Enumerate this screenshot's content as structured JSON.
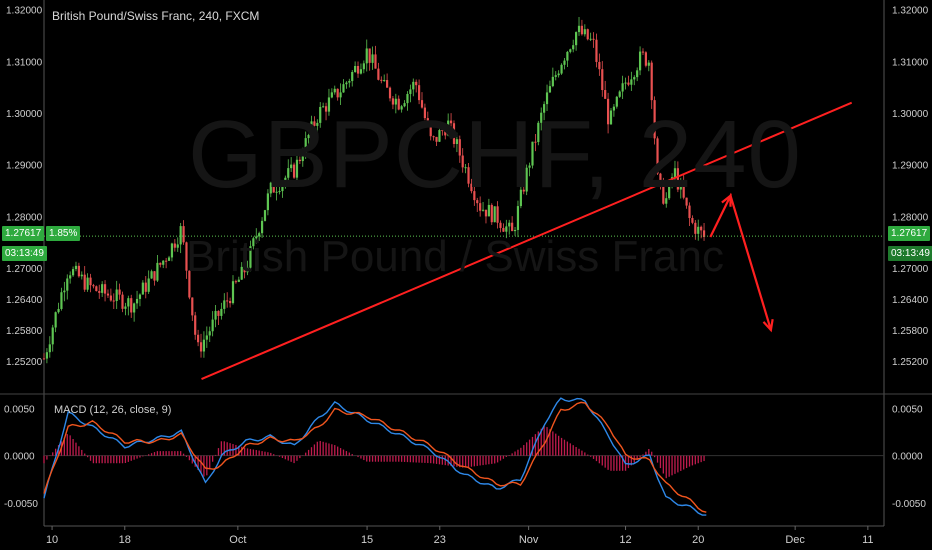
{
  "header": {
    "title": "British Pound/Swiss Franc, 240, FXCM"
  },
  "watermark": {
    "symbol": "GBPCHF, 240",
    "name": "British Pound / Swiss Franc"
  },
  "price_tags": {
    "left_price": "1.27617",
    "left_change": "1.85%",
    "right_price": "1.27617",
    "right_timer": "03:13:49",
    "left_timer": "03:13:49"
  },
  "macd_panel": {
    "label": "MACD (12, 26, close, 9)"
  },
  "colors": {
    "up": "#5ec552",
    "down": "#e85050",
    "trendline": "#ff2020",
    "macd": "#2e88e8",
    "signal": "#f0551e",
    "hist": "#c01c4e"
  },
  "chart_data": [
    {
      "type": "candlestick",
      "title": "British Pound/Swiss Franc, 240, FXCM",
      "y_ticks": [
        "1.32000",
        "1.31000",
        "1.30000",
        "1.29000",
        "1.28000",
        "1.27000",
        "1.26400",
        "1.25800",
        "1.25200"
      ],
      "x_ticks": [
        "10",
        "18",
        "Oct",
        "15",
        "23",
        "Nov",
        "12",
        "20",
        "Dec",
        "11"
      ],
      "ylim": [
        1.246,
        1.3215
      ],
      "last_price": 1.27617,
      "change_pct": "1.85%",
      "close_path": [
        {
          "x": 0,
          "y": 1.2525
        },
        {
          "x": 3,
          "y": 1.27
        },
        {
          "x": 6,
          "y": 1.266
        },
        {
          "x": 11,
          "y": 1.263
        },
        {
          "x": 15,
          "y": 1.272
        },
        {
          "x": 17,
          "y": 1.2775
        },
        {
          "x": 19,
          "y": 1.254
        },
        {
          "x": 22,
          "y": 1.262
        },
        {
          "x": 25,
          "y": 1.27
        },
        {
          "x": 28,
          "y": 1.285
        },
        {
          "x": 31,
          "y": 1.289
        },
        {
          "x": 34,
          "y": 1.3
        },
        {
          "x": 37,
          "y": 1.305
        },
        {
          "x": 40,
          "y": 1.312
        },
        {
          "x": 42,
          "y": 1.305
        },
        {
          "x": 44,
          "y": 1.302
        },
        {
          "x": 46,
          "y": 1.306
        },
        {
          "x": 48,
          "y": 1.294
        },
        {
          "x": 50,
          "y": 1.298
        },
        {
          "x": 52,
          "y": 1.29
        },
        {
          "x": 54,
          "y": 1.282
        },
        {
          "x": 56,
          "y": 1.28
        },
        {
          "x": 58,
          "y": 1.2765
        },
        {
          "x": 60,
          "y": 1.29
        },
        {
          "x": 62,
          "y": 1.302
        },
        {
          "x": 64,
          "y": 1.31
        },
        {
          "x": 66,
          "y": 1.316
        },
        {
          "x": 68,
          "y": 1.3135
        },
        {
          "x": 70,
          "y": 1.298
        },
        {
          "x": 72,
          "y": 1.306
        },
        {
          "x": 74,
          "y": 1.311
        },
        {
          "x": 75,
          "y": 1.31
        },
        {
          "x": 76,
          "y": 1.286
        },
        {
          "x": 77,
          "y": 1.283
        },
        {
          "x": 78,
          "y": 1.289
        },
        {
          "x": 80,
          "y": 1.279
        },
        {
          "x": 82,
          "y": 1.2755
        }
      ],
      "annotations": {
        "trendline": [
          {
            "x": 19.5,
            "y": 1.2485
          },
          {
            "x": 100,
            "y": 1.302
          }
        ],
        "projection_arrow": [
          {
            "x": 82.5,
            "y": 1.276
          },
          {
            "x": 85,
            "y": 1.284
          },
          {
            "x": 90,
            "y": 1.258
          }
        ]
      }
    },
    {
      "type": "line",
      "title": "MACD (12, 26, close, 9)",
      "y_ticks": [
        "0.0050",
        "0.0000",
        "-0.0050"
      ],
      "ylim": [
        -0.0068,
        0.0062
      ],
      "series": [
        {
          "name": "MACD",
          "values": [
            {
              "x": 0,
              "y": -0.0045
            },
            {
              "x": 3,
              "y": 0.0045
            },
            {
              "x": 6,
              "y": 0.003
            },
            {
              "x": 10,
              "y": 0.001
            },
            {
              "x": 14,
              "y": 0.0018
            },
            {
              "x": 17,
              "y": 0.0025
            },
            {
              "x": 20,
              "y": -0.003
            },
            {
              "x": 22,
              "y": 0.0
            },
            {
              "x": 25,
              "y": 0.0015
            },
            {
              "x": 28,
              "y": 0.002
            },
            {
              "x": 31,
              "y": 0.001
            },
            {
              "x": 34,
              "y": 0.004
            },
            {
              "x": 36,
              "y": 0.0055
            },
            {
              "x": 40,
              "y": 0.0038
            },
            {
              "x": 44,
              "y": 0.0022
            },
            {
              "x": 48,
              "y": 0.0005
            },
            {
              "x": 52,
              "y": -0.002
            },
            {
              "x": 56,
              "y": -0.0035
            },
            {
              "x": 59,
              "y": -0.0025
            },
            {
              "x": 62,
              "y": 0.0035
            },
            {
              "x": 64,
              "y": 0.006
            },
            {
              "x": 67,
              "y": 0.0058
            },
            {
              "x": 70,
              "y": 0.002
            },
            {
              "x": 72,
              "y": -0.001
            },
            {
              "x": 75,
              "y": 0.0
            },
            {
              "x": 77,
              "y": -0.0045
            },
            {
              "x": 80,
              "y": -0.0055
            },
            {
              "x": 82,
              "y": -0.0063
            }
          ]
        },
        {
          "name": "Signal",
          "values": [
            {
              "x": 0,
              "y": -0.004
            },
            {
              "x": 3,
              "y": 0.003
            },
            {
              "x": 6,
              "y": 0.0035
            },
            {
              "x": 10,
              "y": 0.0015
            },
            {
              "x": 14,
              "y": 0.0015
            },
            {
              "x": 17,
              "y": 0.0022
            },
            {
              "x": 20,
              "y": -0.0015
            },
            {
              "x": 22,
              "y": -0.001
            },
            {
              "x": 25,
              "y": 0.001
            },
            {
              "x": 28,
              "y": 0.0018
            },
            {
              "x": 31,
              "y": 0.0015
            },
            {
              "x": 34,
              "y": 0.003
            },
            {
              "x": 36,
              "y": 0.0048
            },
            {
              "x": 40,
              "y": 0.0042
            },
            {
              "x": 44,
              "y": 0.0026
            },
            {
              "x": 48,
              "y": 0.001
            },
            {
              "x": 52,
              "y": -0.0012
            },
            {
              "x": 56,
              "y": -0.003
            },
            {
              "x": 59,
              "y": -0.003
            },
            {
              "x": 62,
              "y": 0.0015
            },
            {
              "x": 64,
              "y": 0.0048
            },
            {
              "x": 67,
              "y": 0.0056
            },
            {
              "x": 70,
              "y": 0.003
            },
            {
              "x": 72,
              "y": 0.0
            },
            {
              "x": 75,
              "y": -0.0005
            },
            {
              "x": 77,
              "y": -0.003
            },
            {
              "x": 80,
              "y": -0.0048
            },
            {
              "x": 82,
              "y": -0.006
            }
          ]
        }
      ]
    }
  ]
}
